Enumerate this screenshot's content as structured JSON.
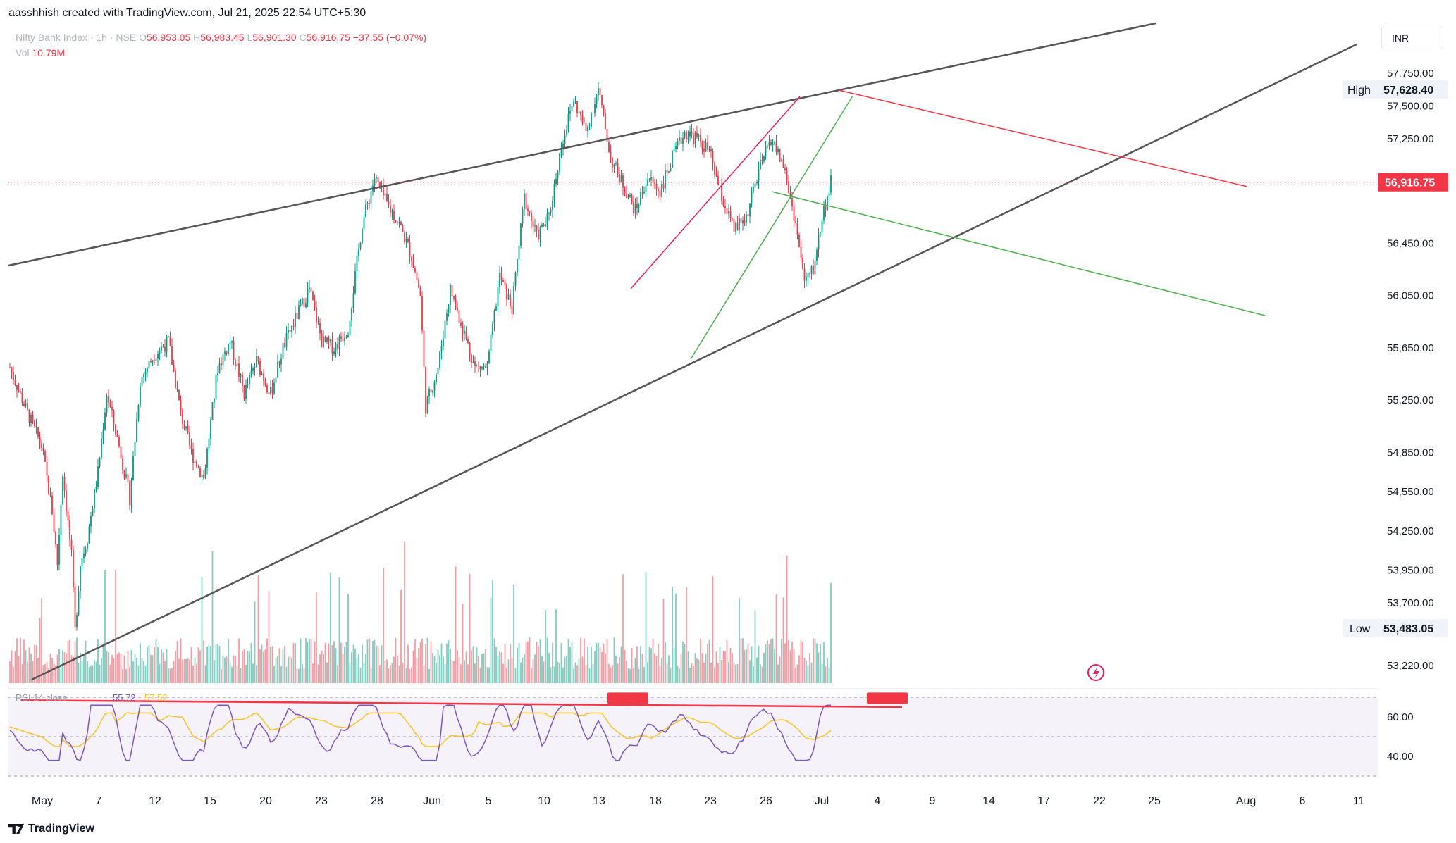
{
  "header": {
    "attribution": "aasshhish created with TradingView.com, Jul 21, 2025 22:54 UTC+5:30"
  },
  "legend": {
    "symbol": "Nifty Bank Index · 1h · NSE",
    "open_label": "O",
    "open": "56,953.05",
    "high_label": "H",
    "high": "56,983.45",
    "low_label": "L",
    "low": "56,901.30",
    "close_label": "C",
    "close": "56,916.75",
    "change": "−37.55 (−0.07%)",
    "vol_label": "Vol",
    "vol": "10.79M"
  },
  "currency": "INR",
  "footer": {
    "brand": "TradingView"
  },
  "colors": {
    "up": "#089981",
    "down": "#f23645",
    "rsi": "#7e57c2",
    "rsi_ma": "#f7c325",
    "trend": "#555555",
    "red_line": "#f23645",
    "green_line": "#4caf50",
    "magenta_line": "#e91e63"
  },
  "chart_data": {
    "type": "candlestick",
    "timeframe": "1h",
    "price_axis": {
      "ticks": [
        57750,
        57500,
        57250,
        56450,
        56050,
        55650,
        55250,
        54850,
        54550,
        54250,
        53950,
        53700,
        53220
      ],
      "tick_labels": [
        "57,750.00",
        "57,500.00",
        "57,250.00",
        "56,450.00",
        "56,050.00",
        "55,650.00",
        "55,250.00",
        "54,850.00",
        "54,550.00",
        "54,250.00",
        "53,950.00",
        "53,700.00",
        "53,220.00"
      ]
    },
    "high_marker": {
      "label": "High",
      "value": "57,628.40"
    },
    "low_marker": {
      "label": "Low",
      "value": "53,483.05"
    },
    "last_price": {
      "value": "56,916.75",
      "price": 56916.75
    },
    "x_axis_labels": [
      "May",
      "7",
      "12",
      "15",
      "20",
      "23",
      "28",
      "Jun",
      "5",
      "10",
      "13",
      "18",
      "23",
      "26",
      "Jul",
      "4",
      "9",
      "14",
      "17",
      "22",
      "25",
      "Aug",
      "6",
      "11"
    ],
    "price_path": [
      [
        0,
        55500
      ],
      [
        10,
        55150
      ],
      [
        18,
        54900
      ],
      [
        24,
        54400
      ],
      [
        27,
        54000
      ],
      [
        30,
        54700
      ],
      [
        35,
        54050
      ],
      [
        37,
        53483
      ],
      [
        40,
        54000
      ],
      [
        44,
        54200
      ],
      [
        50,
        54700
      ],
      [
        55,
        55300
      ],
      [
        62,
        54900
      ],
      [
        68,
        54500
      ],
      [
        74,
        55400
      ],
      [
        82,
        55600
      ],
      [
        90,
        55700
      ],
      [
        97,
        55150
      ],
      [
        103,
        54850
      ],
      [
        110,
        54650
      ],
      [
        118,
        55500
      ],
      [
        125,
        55700
      ],
      [
        133,
        55300
      ],
      [
        140,
        55550
      ],
      [
        148,
        55300
      ],
      [
        155,
        55650
      ],
      [
        163,
        55900
      ],
      [
        170,
        56100
      ],
      [
        177,
        55700
      ],
      [
        184,
        55650
      ],
      [
        192,
        55800
      ],
      [
        200,
        56600
      ],
      [
        207,
        56950
      ],
      [
        214,
        56750
      ],
      [
        221,
        56600
      ],
      [
        228,
        56350
      ],
      [
        233,
        56050
      ],
      [
        236,
        55200
      ],
      [
        243,
        55500
      ],
      [
        250,
        56100
      ],
      [
        257,
        55800
      ],
      [
        264,
        55500
      ],
      [
        271,
        55500
      ],
      [
        278,
        56200
      ],
      [
        285,
        55950
      ],
      [
        292,
        56800
      ],
      [
        299,
        56500
      ],
      [
        306,
        56650
      ],
      [
        313,
        57200
      ],
      [
        320,
        57550
      ],
      [
        327,
        57300
      ],
      [
        334,
        57628
      ],
      [
        341,
        57100
      ],
      [
        348,
        56900
      ],
      [
        355,
        56700
      ],
      [
        362,
        56950
      ],
      [
        369,
        56850
      ],
      [
        376,
        57100
      ],
      [
        383,
        57300
      ],
      [
        390,
        57250
      ],
      [
        397,
        57150
      ],
      [
        404,
        56800
      ],
      [
        411,
        56550
      ],
      [
        418,
        56650
      ],
      [
        425,
        57000
      ],
      [
        432,
        57250
      ],
      [
        439,
        57050
      ],
      [
        446,
        56600
      ],
      [
        451,
        56150
      ],
      [
        456,
        56250
      ],
      [
        461,
        56650
      ],
      [
        466,
        56916
      ]
    ],
    "rsi": {
      "label": "RSI 14 close",
      "value": "55.72",
      "ma_value": "57.52",
      "levels": [
        70,
        50,
        30
      ],
      "tick_labels": [
        "60.00",
        "40.00"
      ]
    }
  }
}
